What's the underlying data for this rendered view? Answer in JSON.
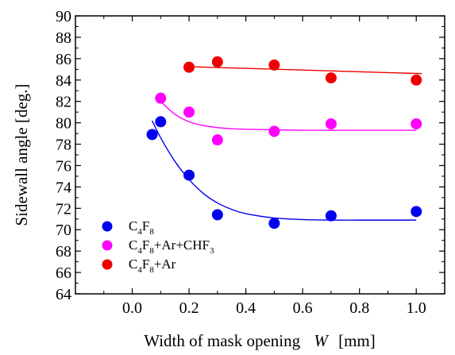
{
  "chart_data": {
    "type": "scatter",
    "xlabel_parts": [
      "Width of mask opening",
      "W",
      "[mm]"
    ],
    "ylabel": "Sidewall angle  [deg.]",
    "xlim": [
      -0.2,
      1.1
    ],
    "ylim": [
      64,
      90
    ],
    "x_ticks": [
      0.0,
      0.2,
      0.4,
      0.6,
      0.8,
      1.0
    ],
    "x_tick_labels": [
      "0.0",
      "0.2",
      "0.4",
      "0.6",
      "0.8",
      "1.0"
    ],
    "y_ticks": [
      64,
      66,
      68,
      70,
      72,
      74,
      76,
      78,
      80,
      82,
      84,
      86,
      88,
      90
    ],
    "y_tick_labels": [
      "64",
      "66",
      "68",
      "70",
      "72",
      "74",
      "76",
      "78",
      "80",
      "82",
      "84",
      "86",
      "88",
      "90"
    ],
    "grid": false,
    "legend_position": "bottom-left",
    "series": [
      {
        "name": "C4F8",
        "legend": {
          "parts": [
            [
              "C",
              ""
            ],
            [
              "4",
              "sub"
            ],
            [
              "F",
              ""
            ],
            [
              "8",
              "sub"
            ]
          ]
        },
        "color": "#0000ee",
        "x": [
          0.07,
          0.1,
          0.2,
          0.3,
          0.5,
          0.7,
          1.0
        ],
        "y": [
          78.9,
          80.1,
          75.1,
          71.4,
          70.6,
          71.3,
          71.7
        ],
        "fit": {
          "x": [
            0.07,
            0.1,
            0.15,
            0.2,
            0.25,
            0.3,
            0.35,
            0.4,
            0.5,
            0.6,
            0.7,
            0.8,
            0.9,
            1.0
          ],
          "y": [
            80.2,
            78.6,
            76.4,
            74.7,
            73.4,
            72.5,
            71.9,
            71.5,
            71.1,
            70.95,
            70.9,
            70.9,
            70.9,
            70.9
          ]
        }
      },
      {
        "name": "C4F8+Ar+CHF3",
        "legend": {
          "parts": [
            [
              "C",
              ""
            ],
            [
              "4",
              "sub"
            ],
            [
              "F",
              ""
            ],
            [
              "8",
              "sub"
            ],
            [
              "+Ar+CHF",
              ""
            ],
            [
              "3",
              "sub"
            ]
          ]
        },
        "color": "#ff00ff",
        "x": [
          0.1,
          0.2,
          0.3,
          0.5,
          0.7,
          1.0
        ],
        "y": [
          82.3,
          81.0,
          78.4,
          79.2,
          79.9,
          79.9
        ],
        "fit": {
          "x": [
            0.1,
            0.15,
            0.2,
            0.25,
            0.3,
            0.35,
            0.4,
            0.5,
            0.6,
            0.7,
            0.8,
            0.9,
            1.0
          ],
          "y": [
            82.0,
            80.8,
            80.1,
            79.75,
            79.55,
            79.45,
            79.4,
            79.35,
            79.3,
            79.3,
            79.3,
            79.3,
            79.3
          ]
        }
      },
      {
        "name": "C4F8+Ar",
        "legend": {
          "parts": [
            [
              "C",
              ""
            ],
            [
              "4",
              "sub"
            ],
            [
              "F",
              ""
            ],
            [
              "8",
              "sub"
            ],
            [
              "+Ar",
              ""
            ]
          ]
        },
        "color": "#ee0000",
        "x": [
          0.2,
          0.3,
          0.5,
          0.7,
          1.0
        ],
        "y": [
          85.2,
          85.7,
          85.4,
          84.2,
          84.0
        ],
        "fit": {
          "x": [
            0.2,
            1.02
          ],
          "y": [
            85.25,
            84.6
          ]
        }
      }
    ]
  }
}
